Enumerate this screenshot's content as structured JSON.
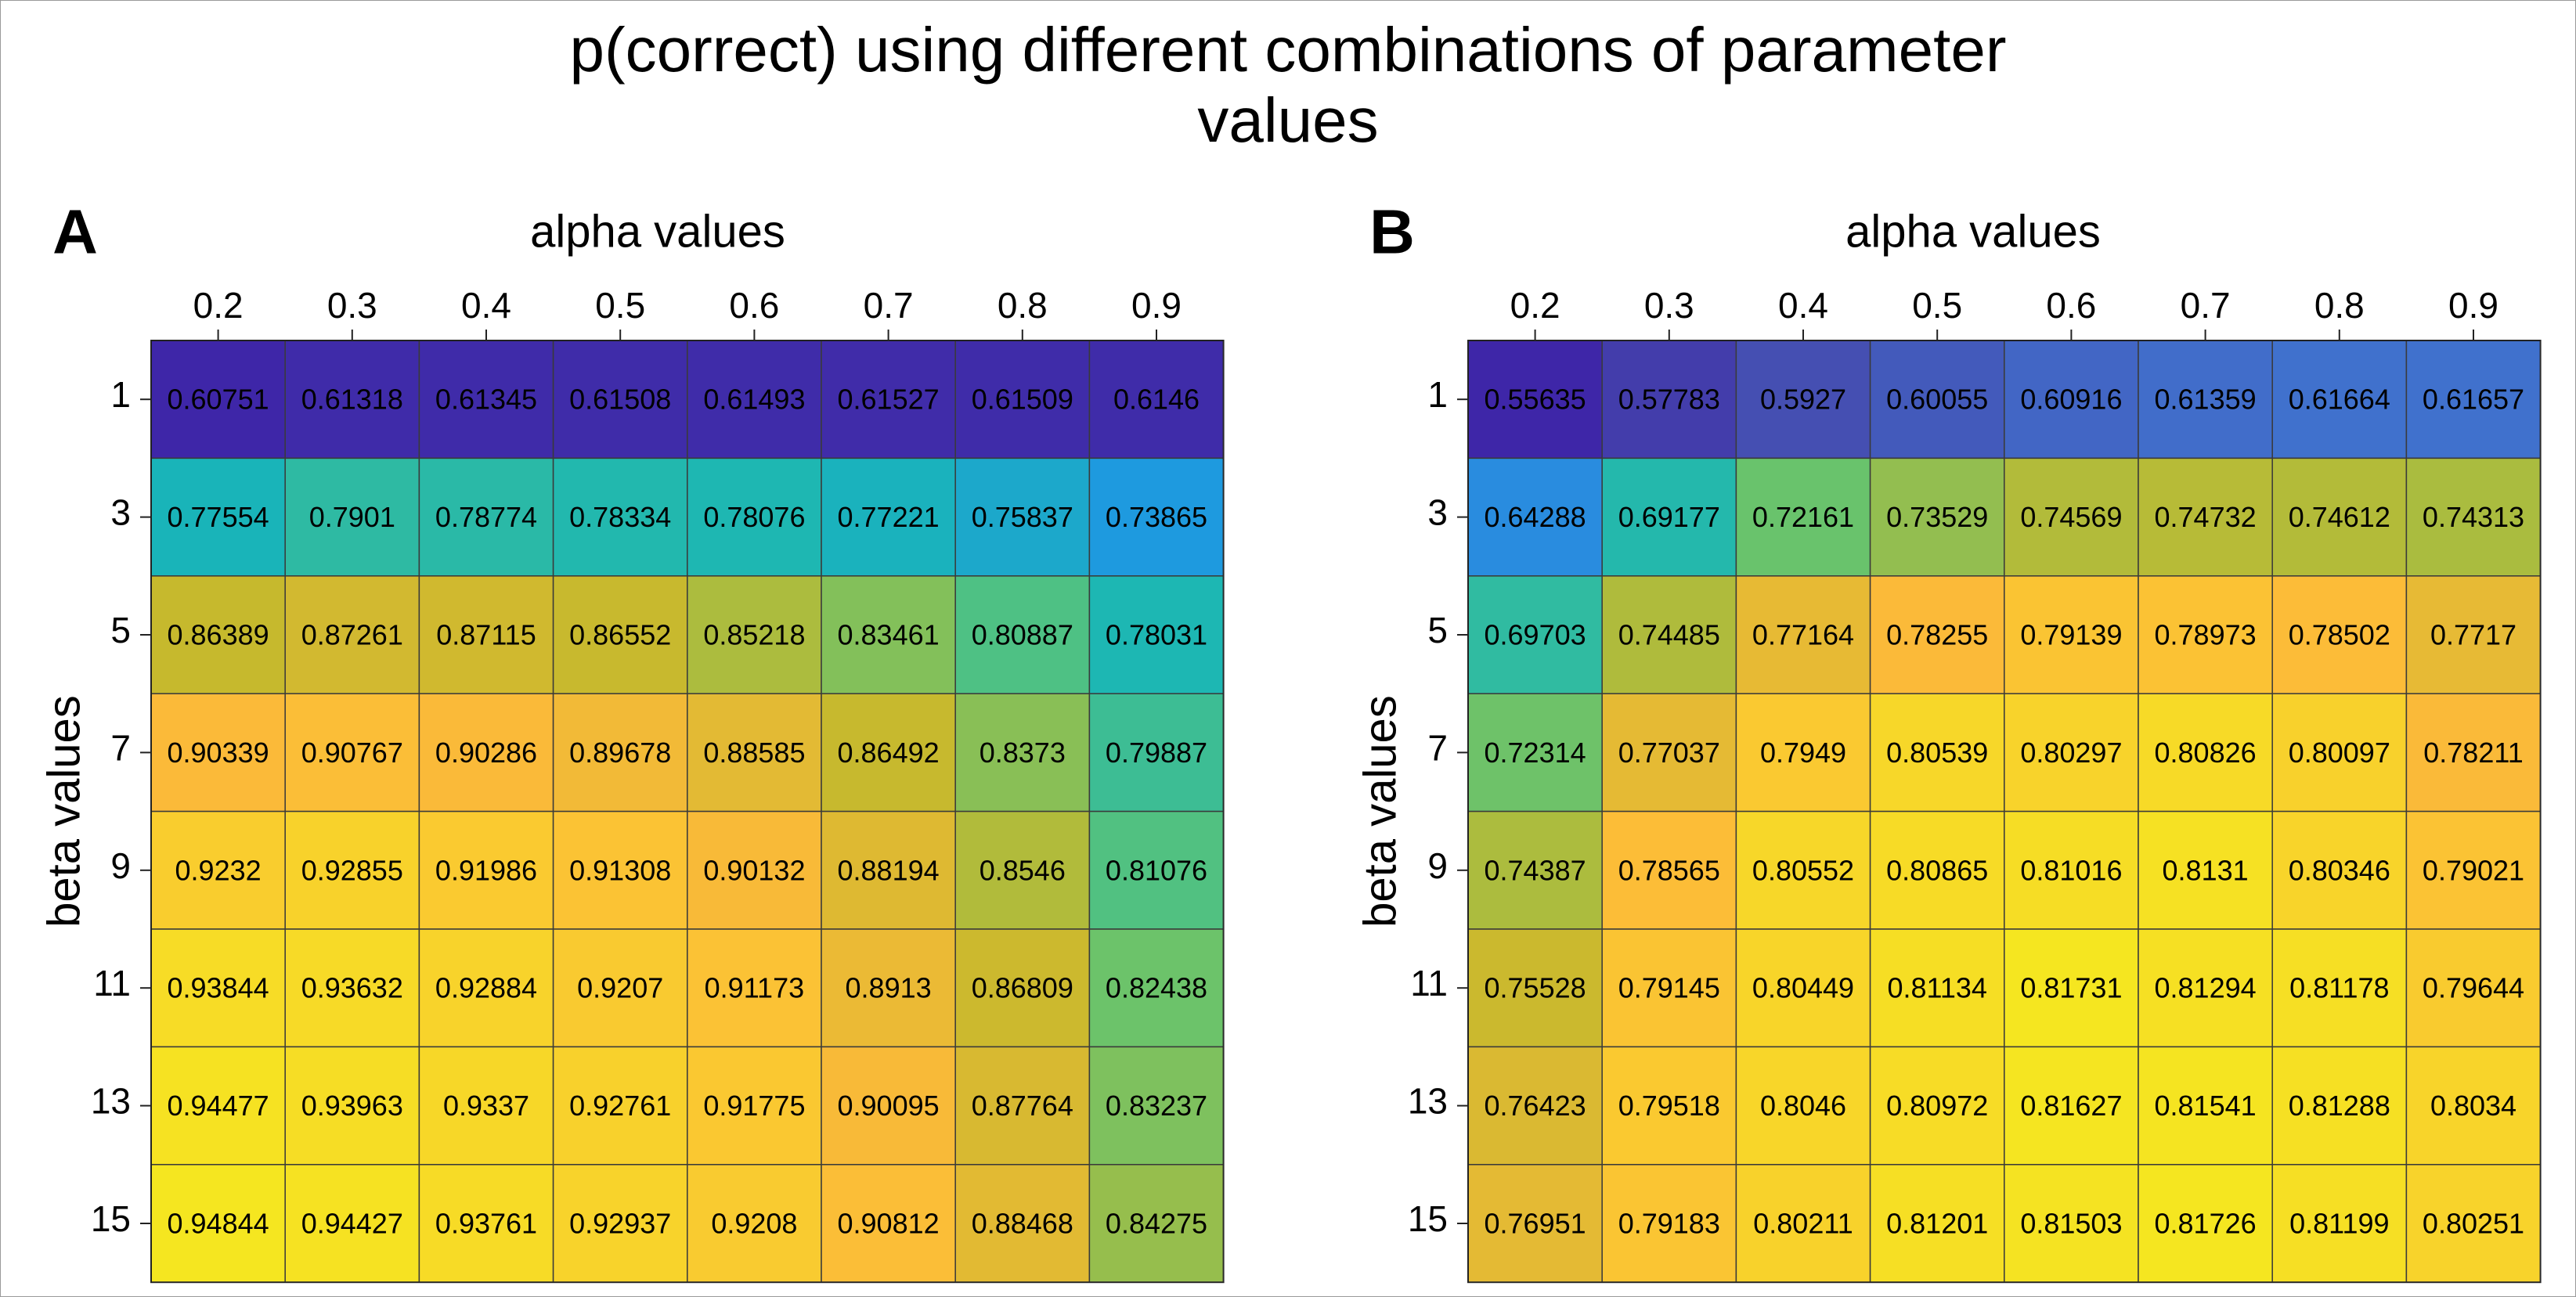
{
  "figure": {
    "title_line1": "p(correct) using different combinations of parameter",
    "title_line2": "values"
  },
  "chart_data": [
    {
      "type": "heatmap",
      "panel_label": "A",
      "xlabel": "alpha values",
      "ylabel": "beta values",
      "x": [
        "0.2",
        "0.3",
        "0.4",
        "0.5",
        "0.6",
        "0.7",
        "0.8",
        "0.9"
      ],
      "y": [
        "1",
        "3",
        "5",
        "7",
        "9",
        "11",
        "13",
        "15"
      ],
      "values": [
        [
          "0.60751",
          "0.61318",
          "0.61345",
          "0.61508",
          "0.61493",
          "0.61527",
          "0.61509",
          "0.6146"
        ],
        [
          "0.77554",
          "0.7901",
          "0.78774",
          "0.78334",
          "0.78076",
          "0.77221",
          "0.75837",
          "0.73865"
        ],
        [
          "0.86389",
          "0.87261",
          "0.87115",
          "0.86552",
          "0.85218",
          "0.83461",
          "0.80887",
          "0.78031"
        ],
        [
          "0.90339",
          "0.90767",
          "0.90286",
          "0.89678",
          "0.88585",
          "0.86492",
          "0.8373",
          "0.79887"
        ],
        [
          "0.9232",
          "0.92855",
          "0.91986",
          "0.91308",
          "0.90132",
          "0.88194",
          "0.8546",
          "0.81076"
        ],
        [
          "0.93844",
          "0.93632",
          "0.92884",
          "0.9207",
          "0.91173",
          "0.8913",
          "0.86809",
          "0.82438"
        ],
        [
          "0.94477",
          "0.93963",
          "0.9337",
          "0.92761",
          "0.91775",
          "0.90095",
          "0.87764",
          "0.83237"
        ],
        [
          "0.94844",
          "0.94427",
          "0.93761",
          "0.92937",
          "0.9208",
          "0.90812",
          "0.88468",
          "0.84275"
        ]
      ],
      "colormap": "parula",
      "x_axis_position": "top"
    },
    {
      "type": "heatmap",
      "panel_label": "B",
      "xlabel": "alpha values",
      "ylabel": "beta values",
      "x": [
        "0.2",
        "0.3",
        "0.4",
        "0.5",
        "0.6",
        "0.7",
        "0.8",
        "0.9"
      ],
      "y": [
        "1",
        "3",
        "5",
        "7",
        "9",
        "11",
        "13",
        "15"
      ],
      "values": [
        [
          "0.55635",
          "0.57783",
          "0.5927",
          "0.60055",
          "0.60916",
          "0.61359",
          "0.61664",
          "0.61657"
        ],
        [
          "0.64288",
          "0.69177",
          "0.72161",
          "0.73529",
          "0.74569",
          "0.74732",
          "0.74612",
          "0.74313"
        ],
        [
          "0.69703",
          "0.74485",
          "0.77164",
          "0.78255",
          "0.79139",
          "0.78973",
          "0.78502",
          "0.7717"
        ],
        [
          "0.72314",
          "0.77037",
          "0.7949",
          "0.80539",
          "0.80297",
          "0.80826",
          "0.80097",
          "0.78211"
        ],
        [
          "0.74387",
          "0.78565",
          "0.80552",
          "0.80865",
          "0.81016",
          "0.8131",
          "0.80346",
          "0.79021"
        ],
        [
          "0.75528",
          "0.79145",
          "0.80449",
          "0.81134",
          "0.81731",
          "0.81294",
          "0.81178",
          "0.79644"
        ],
        [
          "0.76423",
          "0.79518",
          "0.8046",
          "0.80972",
          "0.81627",
          "0.81541",
          "0.81288",
          "0.8034"
        ],
        [
          "0.76951",
          "0.79183",
          "0.80211",
          "0.81201",
          "0.81503",
          "0.81726",
          "0.81199",
          "0.80251"
        ]
      ],
      "colormap": "parula",
      "x_axis_position": "top"
    }
  ]
}
